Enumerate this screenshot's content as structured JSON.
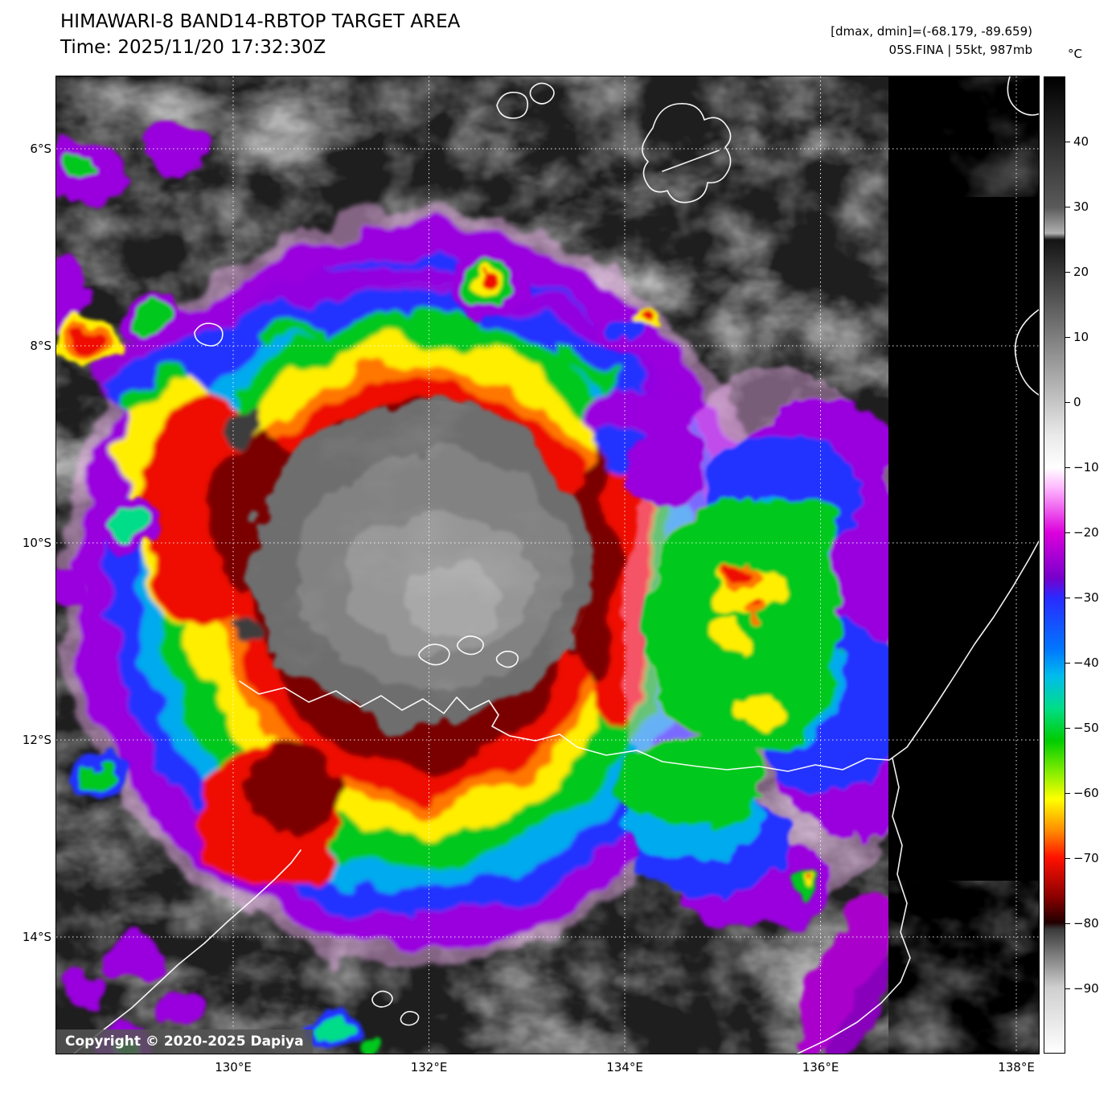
{
  "header": {
    "title": "HIMAWARI-8 BAND14-RBTOP TARGET AREA",
    "time": "Time: 2025/11/20 17:32:30Z",
    "dminmax": "[dmax, dmin]=(-68.179, -89.659)",
    "storm": "05S.FINA | 55kt, 987mb"
  },
  "axes": {
    "lat_labels": [
      "6°S",
      "8°S",
      "10°S",
      "12°S",
      "14°S"
    ],
    "lon_labels": [
      "130°E",
      "132°E",
      "134°E",
      "136°E",
      "138°E"
    ]
  },
  "colorbar": {
    "unit": "°C",
    "tick_labels": [
      "40",
      "30",
      "20",
      "10",
      "0",
      "−10",
      "−20",
      "−30",
      "−40",
      "−50",
      "−60",
      "−70",
      "−80",
      "−90"
    ],
    "tick_values": [
      40,
      30,
      20,
      10,
      0,
      -10,
      -20,
      -30,
      -40,
      -50,
      -60,
      -70,
      -80,
      -90
    ],
    "domain": [
      50,
      -100
    ],
    "stops": [
      {
        "t": 50,
        "c": "#000000"
      },
      {
        "t": 30,
        "c": "#5a5a5a"
      },
      {
        "t": 26,
        "c": "#b0b0b0"
      },
      {
        "t": 25,
        "c": "#141414"
      },
      {
        "t": -5,
        "c": "#e9e9e9"
      },
      {
        "t": -10,
        "c": "#ffffff"
      },
      {
        "t": -13,
        "c": "#ffbbff"
      },
      {
        "t": -20,
        "c": "#dd00dd"
      },
      {
        "t": -27,
        "c": "#7700cc"
      },
      {
        "t": -30,
        "c": "#2a2aff"
      },
      {
        "t": -38,
        "c": "#0077ff"
      },
      {
        "t": -42,
        "c": "#00bbee"
      },
      {
        "t": -47,
        "c": "#00dd88"
      },
      {
        "t": -52,
        "c": "#00cc00"
      },
      {
        "t": -57,
        "c": "#88ee00"
      },
      {
        "t": -61,
        "c": "#ffff00"
      },
      {
        "t": -66,
        "c": "#ff8800"
      },
      {
        "t": -70,
        "c": "#ff1100"
      },
      {
        "t": -76,
        "c": "#8b0000"
      },
      {
        "t": -80,
        "c": "#200000"
      },
      {
        "t": -81,
        "c": "#3a3a3a"
      },
      {
        "t": -90,
        "c": "#cfcfcf"
      },
      {
        "t": -100,
        "c": "#ffffff"
      }
    ]
  },
  "map": {
    "copyright": "Copyright © 2020-2025 Dapiya",
    "feature_colors": {
      "coldest_ring": "#ee1100",
      "cold_ring_inner": "#7a0000",
      "warm_cdo_gray": "#828282",
      "outer_fringe": "#9900dd",
      "background": "#000000",
      "coastline": "#ffffff",
      "graticule": "#ffffff"
    }
  }
}
